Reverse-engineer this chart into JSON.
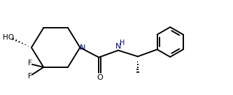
{
  "bg_color": "#ffffff",
  "bond_color": "#000000",
  "n_color": "#000080",
  "line_width": 1.4,
  "fig_width": 3.33,
  "fig_height": 1.37,
  "dpi": 100,
  "xlim": [
    0.0,
    10.5
  ],
  "ylim": [
    0.3,
    4.5
  ]
}
